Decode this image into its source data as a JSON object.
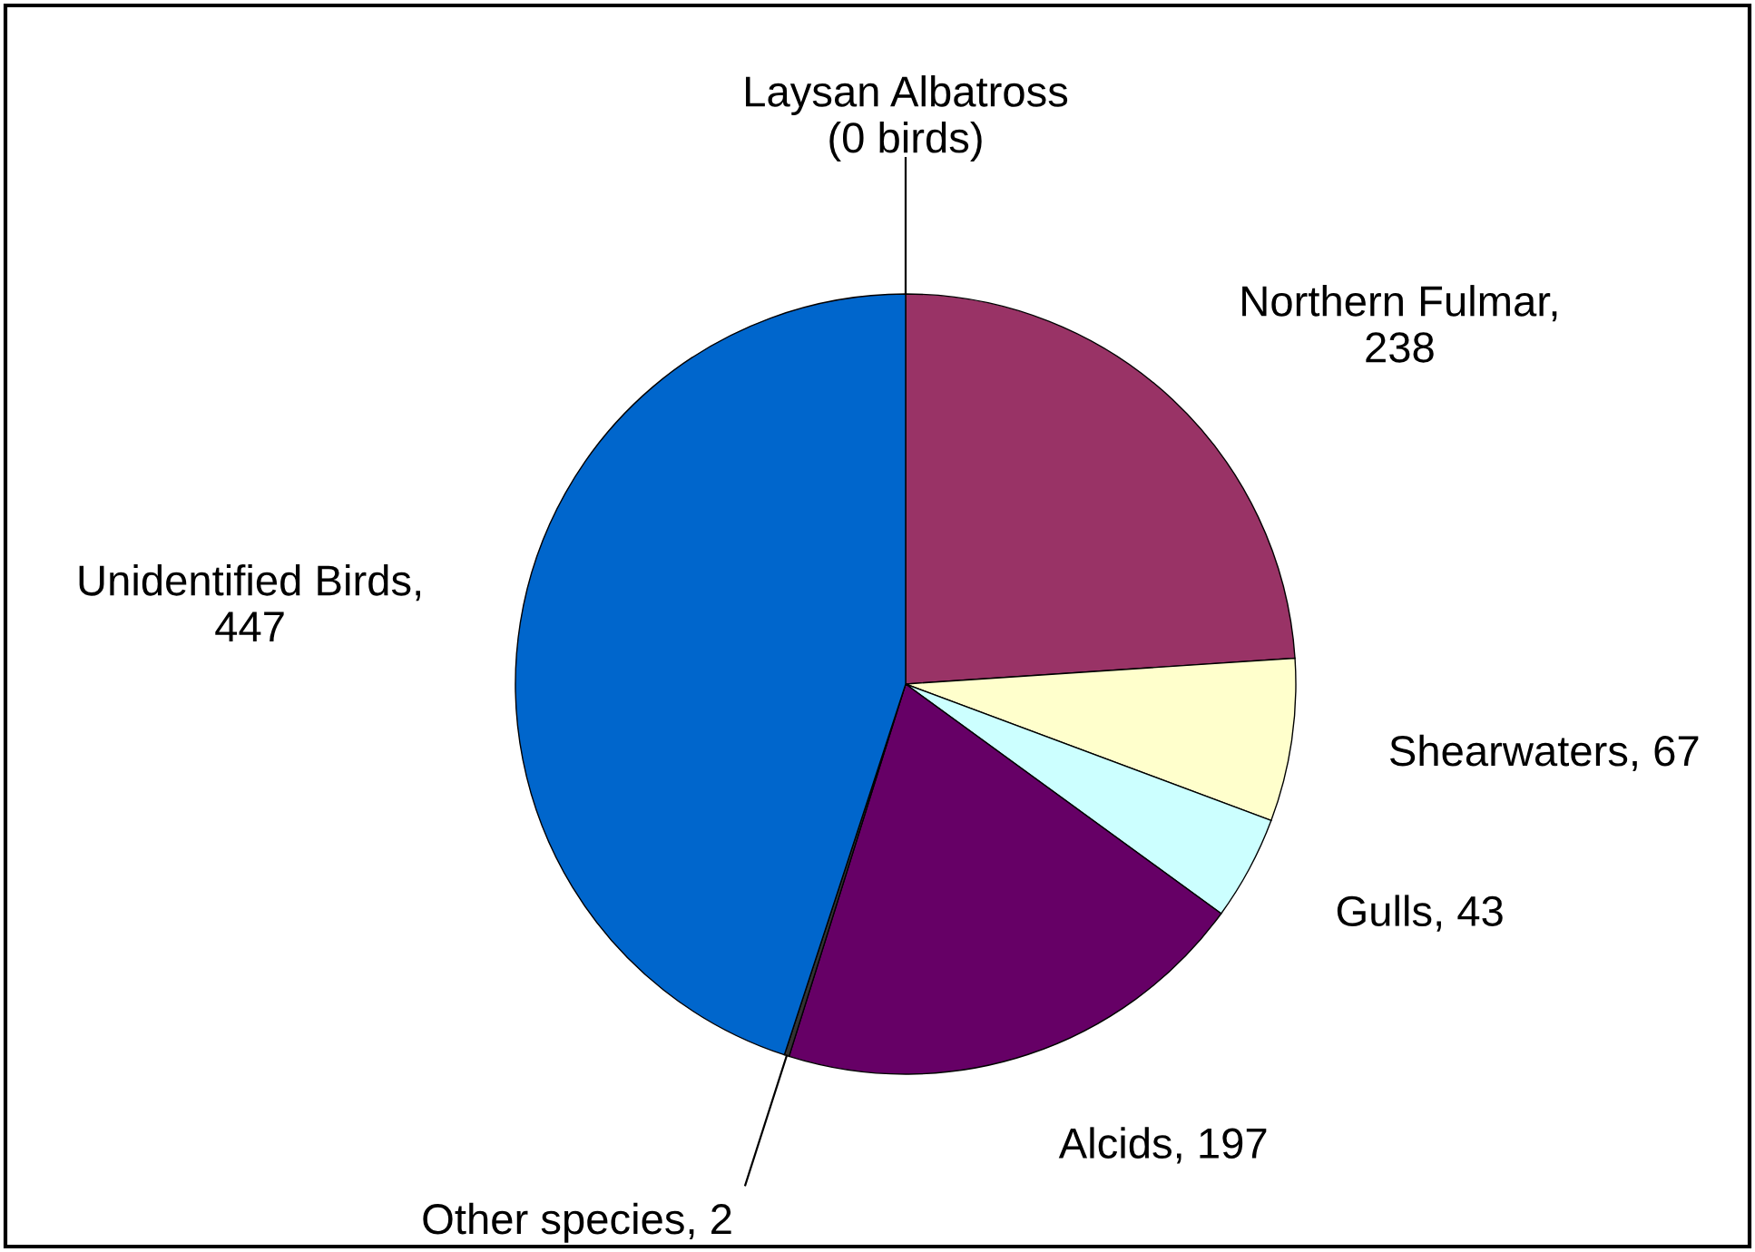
{
  "chart_data": {
    "type": "pie",
    "categories": [
      "Laysan Albatross\n(0 birds)",
      "Northern Fulmar,\n238",
      "Shearwaters, 67",
      "Gulls, 43",
      "Alcids, 197",
      "Other species, 2",
      "Unidentified Birds,\n447"
    ],
    "values": [
      0,
      238,
      67,
      43,
      197,
      2,
      447
    ],
    "colors": [
      "#ffffff",
      "#993366",
      "#ffffcc",
      "#ccffff",
      "#660066",
      "#333333",
      "#0066cc"
    ],
    "legend": false
  }
}
